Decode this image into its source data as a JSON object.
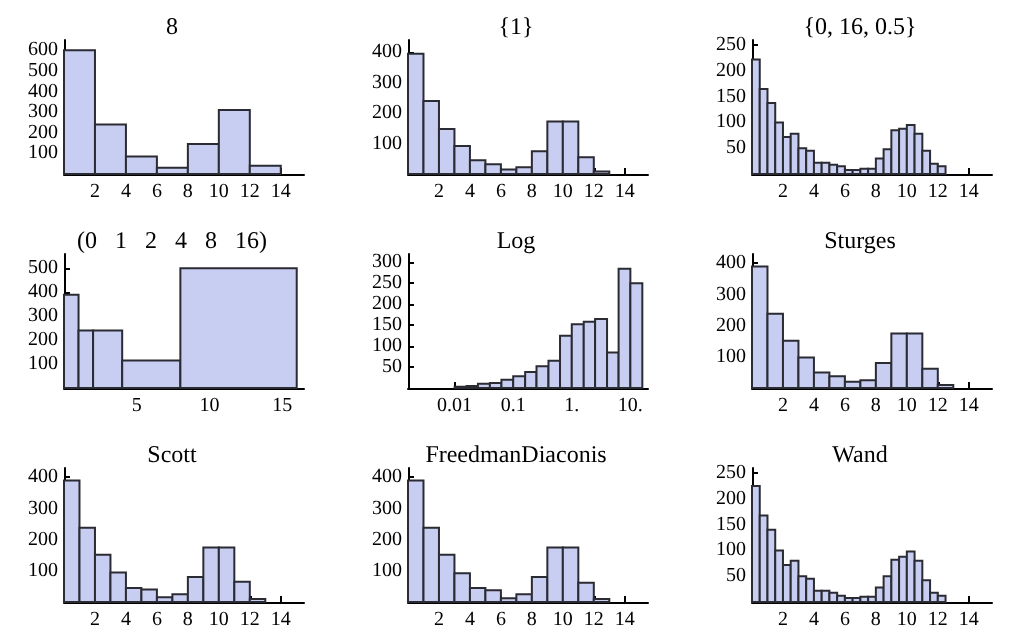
{
  "chart_data": [
    {
      "type": "histogram",
      "title": "8",
      "bins": [
        0,
        2,
        4,
        6,
        8,
        10,
        12,
        14
      ],
      "values": [
        600,
        240,
        85,
        30,
        145,
        310,
        40
      ],
      "color": "#c8cef2",
      "xlim": [
        0,
        15.5
      ],
      "xticks": [
        2,
        4,
        6,
        8,
        10,
        12,
        14
      ],
      "ylim": [
        0,
        650
      ],
      "yticks": [
        100,
        200,
        300,
        400,
        500,
        600
      ]
    },
    {
      "type": "histogram",
      "title": "{1}",
      "bins": [
        0,
        1,
        2,
        3,
        4,
        5,
        6,
        7,
        8,
        9,
        10,
        11,
        12,
        13
      ],
      "values": [
        395,
        240,
        148,
        92,
        45,
        32,
        15,
        22,
        75,
        172,
        172,
        55,
        8
      ],
      "color": "#c8cef2",
      "xlim": [
        0,
        15.5
      ],
      "xticks": [
        2,
        4,
        6,
        8,
        10,
        12,
        14
      ],
      "ylim": [
        0,
        440
      ],
      "yticks": [
        100,
        200,
        300,
        400
      ]
    },
    {
      "type": "histogram",
      "title": "{0, 16, 0.5}",
      "bins": [
        0,
        0.5,
        1,
        1.5,
        2,
        2.5,
        3,
        3.5,
        4,
        4.5,
        5,
        5.5,
        6,
        6.5,
        7,
        7.5,
        8,
        8.5,
        9,
        9.5,
        10,
        10.5,
        11,
        11.5,
        12,
        12.5
      ],
      "values": [
        222,
        165,
        138,
        100,
        72,
        78,
        50,
        45,
        22,
        22,
        18,
        15,
        8,
        8,
        10,
        10,
        30,
        48,
        85,
        88,
        95,
        78,
        45,
        20,
        15
      ],
      "color": "#c8cef2",
      "xlim": [
        0,
        15.5
      ],
      "xticks": [
        2,
        4,
        6,
        8,
        10,
        12,
        14
      ],
      "ylim": [
        0,
        260
      ],
      "yticks": [
        50,
        100,
        150,
        200,
        250
      ]
    },
    {
      "type": "histogram",
      "title": "(0   1   2   4   8   16)",
      "bins": [
        0,
        1,
        2,
        4,
        8,
        16
      ],
      "values": [
        390,
        240,
        240,
        115,
        500
      ],
      "color": "#c8cef2",
      "xlim": [
        0,
        16.5
      ],
      "xticks": [
        5,
        10,
        15
      ],
      "ylim": [
        0,
        560
      ],
      "yticks": [
        100,
        200,
        300,
        400,
        500
      ]
    },
    {
      "type": "histogram",
      "title": "Log",
      "log": "x",
      "bins": [
        0.01,
        0.016,
        0.025,
        0.04,
        0.063,
        0.1,
        0.16,
        0.25,
        0.4,
        0.63,
        1,
        1.6,
        2.5,
        4,
        6.3,
        10,
        16
      ],
      "values": [
        3,
        5,
        10,
        12,
        20,
        28,
        38,
        52,
        65,
        125,
        152,
        158,
        165,
        85,
        285,
        250
      ],
      "color": "#c8cef2",
      "xlim": [
        0.0016,
        20
      ],
      "xticks": [
        0.01,
        0.1,
        {
          "value": 1,
          "label": "1."
        },
        {
          "value": 10,
          "label": "10."
        }
      ],
      "ylim": [
        0,
        320
      ],
      "yticks": [
        50,
        100,
        150,
        200,
        250,
        300
      ]
    },
    {
      "type": "histogram",
      "title": "Sturges",
      "bins": [
        0,
        1,
        2,
        3,
        4,
        5,
        6,
        7,
        8,
        9,
        10,
        11,
        12,
        13
      ],
      "values": [
        390,
        238,
        152,
        98,
        50,
        38,
        20,
        25,
        80,
        175,
        175,
        62,
        10
      ],
      "color": "#c8cef2",
      "xlim": [
        0,
        15.5
      ],
      "xticks": [
        2,
        4,
        6,
        8,
        10,
        12,
        14
      ],
      "ylim": [
        0,
        430
      ],
      "yticks": [
        100,
        200,
        300,
        400
      ]
    },
    {
      "type": "histogram",
      "title": "Scott",
      "bins": [
        0,
        1,
        2,
        3,
        4,
        5,
        6,
        7,
        8,
        9,
        10,
        11,
        12,
        13
      ],
      "values": [
        390,
        238,
        152,
        95,
        45,
        40,
        15,
        25,
        80,
        175,
        175,
        65,
        10
      ],
      "color": "#c8cef2",
      "xlim": [
        0,
        15.5
      ],
      "xticks": [
        2,
        4,
        6,
        8,
        10,
        12,
        14
      ],
      "ylim": [
        0,
        430
      ],
      "yticks": [
        100,
        200,
        300,
        400
      ]
    },
    {
      "type": "histogram",
      "title": "FreedmanDiaconis",
      "bins": [
        0,
        1,
        2,
        3,
        4,
        5,
        6,
        7,
        8,
        9,
        10,
        11,
        12,
        13
      ],
      "values": [
        390,
        238,
        152,
        92,
        45,
        38,
        12,
        25,
        80,
        175,
        175,
        62,
        10
      ],
      "color": "#c8cef2",
      "xlim": [
        0,
        15.5
      ],
      "xticks": [
        2,
        4,
        6,
        8,
        10,
        12,
        14
      ],
      "ylim": [
        0,
        430
      ],
      "yticks": [
        100,
        200,
        300,
        400
      ]
    },
    {
      "type": "histogram",
      "title": "Wand",
      "bins": [
        0,
        0.5,
        1,
        1.5,
        2,
        2.5,
        3,
        3.5,
        4,
        4.5,
        5,
        5.5,
        6,
        6.5,
        7,
        7.5,
        8,
        8.5,
        9,
        9.5,
        10,
        10.5,
        11,
        11.5,
        12,
        12.5
      ],
      "values": [
        225,
        168,
        140,
        100,
        72,
        80,
        50,
        45,
        22,
        22,
        18,
        12,
        8,
        8,
        10,
        10,
        28,
        50,
        82,
        88,
        98,
        80,
        42,
        18,
        12
      ],
      "color": "#c8cef2",
      "xlim": [
        0,
        15.5
      ],
      "xticks": [
        2,
        4,
        6,
        8,
        10,
        12,
        14
      ],
      "ylim": [
        0,
        260
      ],
      "yticks": [
        50,
        100,
        150,
        200,
        250
      ]
    }
  ]
}
